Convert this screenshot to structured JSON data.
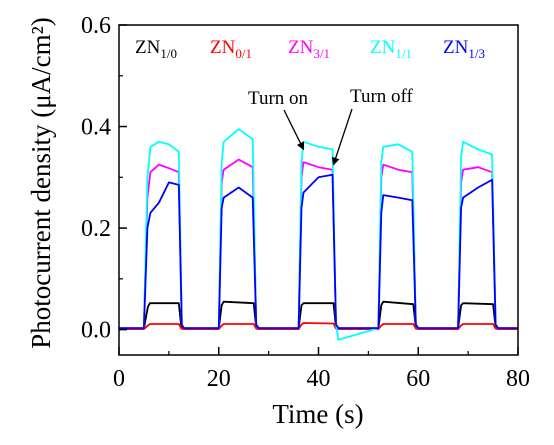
{
  "chart_data": {
    "type": "line",
    "xlabel": "Time (s)",
    "ylabel": "Photocurrent density (μA/cm²)",
    "xlim": [
      0,
      80
    ],
    "ylim": [
      -0.05,
      0.6
    ],
    "x_ticks": [
      "0",
      "20",
      "40",
      "60",
      "80"
    ],
    "y_ticks": [
      "0.0",
      "0.2",
      "0.4",
      "0.6"
    ],
    "legend_placement": "top",
    "grid": false,
    "annotations": [
      {
        "text": "Turn on",
        "x": 37,
        "y": 0.355
      },
      {
        "text": "Turn off",
        "x": 43,
        "y": 0.325
      }
    ],
    "series": [
      {
        "base": "ZN",
        "sub": "1/0",
        "color": "#000000",
        "x": [
          0,
          5,
          5.8,
          6.2,
          12,
          12.5,
          13,
          20,
          20.6,
          21,
          27,
          27.5,
          28,
          36,
          36.6,
          37,
          43,
          43.5,
          44,
          52,
          52.6,
          53,
          59,
          59.5,
          60,
          68,
          68.6,
          69,
          75,
          75.5,
          76,
          80
        ],
        "y": [
          0.002,
          0.002,
          0.045,
          0.052,
          0.052,
          0.004,
          0.002,
          0.002,
          0.048,
          0.055,
          0.052,
          0.004,
          0.002,
          0.002,
          0.048,
          0.052,
          0.052,
          0.004,
          0.002,
          0.002,
          0.048,
          0.055,
          0.05,
          0.004,
          0.002,
          0.002,
          0.048,
          0.052,
          0.05,
          0.004,
          0.002,
          0.002
        ]
      },
      {
        "base": "ZN",
        "sub": "0/1",
        "color": "#ff0000",
        "x": [
          0,
          5,
          5.8,
          6.2,
          12,
          12.5,
          13,
          20,
          20.6,
          21,
          27,
          27.5,
          28,
          36,
          36.6,
          37,
          43,
          43.5,
          44,
          52,
          52.6,
          53,
          59,
          59.5,
          60,
          68,
          68.6,
          69,
          75,
          75.5,
          76,
          80
        ],
        "y": [
          0.001,
          0.001,
          0.008,
          0.011,
          0.011,
          0.002,
          0.001,
          0.001,
          0.008,
          0.011,
          0.011,
          0.002,
          0.001,
          0.001,
          0.01,
          0.013,
          0.012,
          0.002,
          0.001,
          0.001,
          0.008,
          0.011,
          0.011,
          0.002,
          0.001,
          0.001,
          0.008,
          0.011,
          0.011,
          0.002,
          0.001,
          0.001
        ]
      },
      {
        "base": "ZN",
        "sub": "3/1",
        "color": "#ff00ff",
        "x": [
          0,
          5,
          5.7,
          6.3,
          8,
          10,
          12,
          12.6,
          13,
          20,
          20.6,
          21,
          24,
          26.8,
          27.5,
          28,
          36,
          36.6,
          37,
          40,
          42.8,
          43.5,
          44,
          52,
          52.6,
          53,
          56,
          58.8,
          59.5,
          60,
          68,
          68.6,
          69,
          72,
          74.8,
          75.5,
          76,
          80
        ],
        "y": [
          0.003,
          0.003,
          0.26,
          0.31,
          0.325,
          0.318,
          0.31,
          0.01,
          0.003,
          0.003,
          0.29,
          0.315,
          0.335,
          0.32,
          0.01,
          0.003,
          0.003,
          0.3,
          0.33,
          0.32,
          0.315,
          0.01,
          0.003,
          0.003,
          0.3,
          0.325,
          0.315,
          0.31,
          0.01,
          0.003,
          0.003,
          0.29,
          0.315,
          0.32,
          0.31,
          0.01,
          0.003,
          0.003
        ]
      },
      {
        "base": "ZN",
        "sub": "1/1",
        "color": "#00ffff",
        "x": [
          0,
          5,
          5.7,
          6.3,
          8,
          10,
          12,
          12.6,
          13,
          20,
          20.6,
          21,
          24,
          26.8,
          27.5,
          28,
          36,
          36.6,
          37,
          40,
          42.8,
          43.5,
          44,
          52,
          52.6,
          53,
          56,
          58.8,
          59.5,
          60,
          68,
          68.6,
          69,
          72,
          74.8,
          75.5,
          76,
          80
        ],
        "y": [
          0.003,
          0.003,
          0.3,
          0.36,
          0.37,
          0.365,
          0.35,
          0.01,
          0.003,
          0.003,
          0.33,
          0.37,
          0.395,
          0.375,
          0.01,
          0.003,
          0.003,
          0.33,
          0.37,
          0.36,
          0.355,
          0.01,
          -0.02,
          0.003,
          0.33,
          0.36,
          0.365,
          0.35,
          0.01,
          0.003,
          0.003,
          0.34,
          0.37,
          0.355,
          0.345,
          0.01,
          0.003,
          0.003
        ]
      },
      {
        "base": "ZN",
        "sub": "1/3",
        "color": "#0000ff",
        "x": [
          0,
          5,
          5.7,
          6.3,
          8,
          10,
          12,
          12.6,
          13,
          20,
          20.6,
          21,
          24,
          26.8,
          27.5,
          28,
          36,
          36.6,
          37,
          40,
          42.8,
          43.5,
          44,
          52,
          52.6,
          53,
          56,
          58.8,
          59.5,
          60,
          68,
          68.6,
          69,
          72,
          74.8,
          75.5,
          76,
          80
        ],
        "y": [
          0.003,
          0.003,
          0.2,
          0.23,
          0.25,
          0.29,
          0.285,
          0.01,
          0.003,
          0.003,
          0.24,
          0.26,
          0.28,
          0.26,
          0.01,
          0.003,
          0.003,
          0.24,
          0.27,
          0.3,
          0.305,
          0.01,
          0.003,
          0.003,
          0.23,
          0.265,
          0.26,
          0.255,
          0.01,
          0.003,
          0.003,
          0.24,
          0.26,
          0.28,
          0.295,
          0.01,
          0.003,
          0.003
        ]
      }
    ]
  }
}
